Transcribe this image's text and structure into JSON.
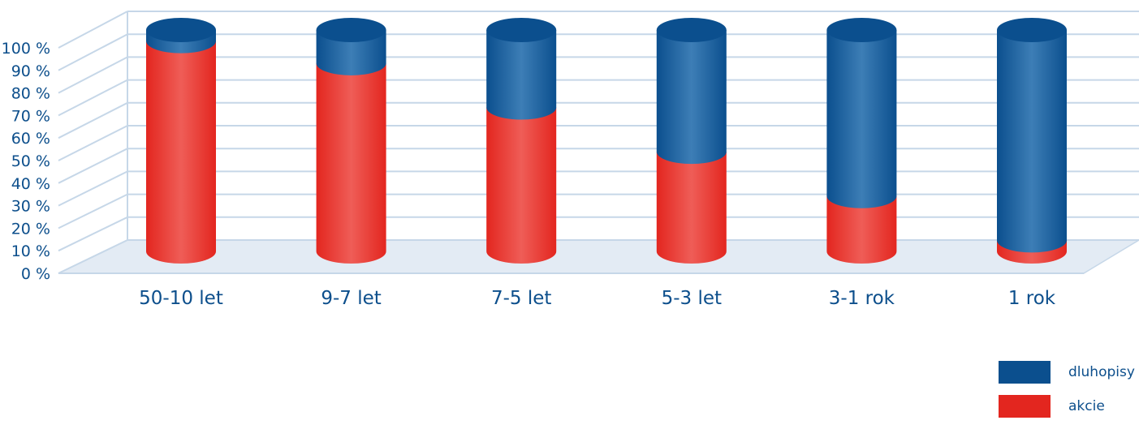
{
  "chart_data": {
    "type": "bar",
    "stacked": true,
    "style": "3d-cylinder",
    "categories": [
      "50-10 let",
      "9-7 let",
      "7-5 let",
      "5-3 let",
      "3-1 rok",
      "1 rok"
    ],
    "series": [
      {
        "name": "akcie",
        "color": "#e3261f",
        "values": [
          95,
          85,
          65,
          45,
          25,
          5
        ]
      },
      {
        "name": "dluhopisy",
        "color": "#0b4f8e",
        "values": [
          5,
          15,
          35,
          55,
          75,
          95
        ]
      }
    ],
    "y_ticks": [
      "0 %",
      "10 %",
      "20 %",
      "30 %",
      "40 %",
      "50 %",
      "60 %",
      "70 %",
      "80 %",
      "90 %",
      "100 %"
    ],
    "ylim": [
      0,
      100
    ],
    "grid": true,
    "legend_position": "bottom-right"
  },
  "legend": {
    "items": [
      {
        "label": "dluhopisy",
        "color": "#0b4f8e"
      },
      {
        "label": "akcie",
        "color": "#e3261f"
      }
    ]
  }
}
